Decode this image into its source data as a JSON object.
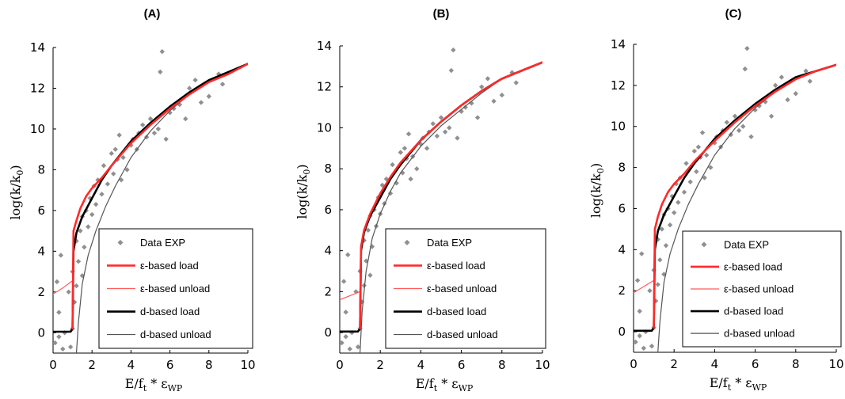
{
  "colors": {
    "data_points": "#909090",
    "eps_load": "#ff2a2a",
    "eps_unload": "#ff5a5a",
    "d_load": "#000000",
    "d_unload": "#555555",
    "axis": "#000000"
  },
  "axis_labels": {
    "x_main": "E/f",
    "x_sub1": "t",
    "x_mid": " * ε",
    "x_sub2": "WP",
    "y_main": "log(k/k",
    "y_sub": "0",
    "y_end": ")"
  },
  "legend": {
    "data": "Data EXP",
    "eps_load": "ε-based load",
    "eps_unload": "ε-based unload",
    "d_load": "d-based load",
    "d_unload": "d-based unload"
  },
  "chart_data": [
    {
      "panel": "(A)",
      "type": "scatter",
      "xlim": [
        0,
        10
      ],
      "ylim": [
        -1,
        14
      ],
      "x_ticks": [
        0,
        2,
        4,
        6,
        8,
        10
      ],
      "y_ticks": [
        0,
        2,
        4,
        6,
        8,
        10,
        12,
        14
      ],
      "legend_position": "bottom-right",
      "experimental_data": {
        "name": "Data EXP",
        "x": [
          0.1,
          0.2,
          0.3,
          0.3,
          0.4,
          0.5,
          0.6,
          0.8,
          0.9,
          1.0,
          1.0,
          1.1,
          1.2,
          1.2,
          1.3,
          1.4,
          1.5,
          1.5,
          1.6,
          1.7,
          1.8,
          1.9,
          2.0,
          2.1,
          2.2,
          2.3,
          2.5,
          2.6,
          2.8,
          3.0,
          3.1,
          3.2,
          3.3,
          3.4,
          3.5,
          3.6,
          3.8,
          4.0,
          4.1,
          4.3,
          4.4,
          4.6,
          4.8,
          5.0,
          5.2,
          5.4,
          5.5,
          5.6,
          5.8,
          6.0,
          6.2,
          6.5,
          6.8,
          7.0,
          7.3,
          7.6,
          8.0,
          8.5,
          8.7
        ],
        "y": [
          -0.5,
          2.5,
          -0.2,
          1.0,
          3.8,
          -0.8,
          0.0,
          2.0,
          -0.7,
          0.2,
          3.0,
          1.5,
          2.3,
          4.5,
          3.5,
          5.0,
          2.8,
          5.7,
          4.2,
          6.0,
          5.2,
          6.6,
          5.8,
          7.2,
          6.3,
          7.5,
          6.8,
          8.2,
          7.3,
          8.8,
          7.8,
          9.0,
          8.5,
          9.7,
          7.5,
          8.6,
          8.0,
          9.2,
          9.5,
          9.0,
          9.8,
          10.2,
          9.6,
          10.5,
          9.8,
          10.0,
          12.8,
          13.8,
          9.5,
          10.8,
          11.0,
          11.2,
          10.5,
          12.0,
          12.4,
          11.3,
          11.6,
          12.7,
          12.2
        ]
      },
      "series": [
        {
          "name": "ε-based load",
          "x": [
            1.0,
            1.05,
            1.2,
            1.4,
            1.7,
            2.0,
            2.5,
            3.0,
            4.0,
            5.0,
            6.0,
            7.0,
            8.0,
            9.0,
            10.0
          ],
          "y": [
            0.2,
            5.0,
            5.5,
            6.1,
            6.7,
            7.1,
            7.6,
            8.2,
            9.3,
            10.2,
            11.0,
            11.7,
            12.3,
            12.7,
            13.2
          ]
        },
        {
          "name": "ε-based unload",
          "x": [
            0.0,
            0.5,
            1.0
          ],
          "y": [
            1.9,
            2.2,
            2.55
          ]
        },
        {
          "name": "d-based load",
          "x": [
            0.0,
            0.9,
            1.0,
            1.05,
            1.2,
            1.5,
            2.0,
            2.5,
            3.0,
            4.0,
            5.0,
            6.0,
            7.0,
            8.0,
            9.0,
            10.0
          ],
          "y": [
            0.05,
            0.05,
            0.2,
            4.0,
            4.9,
            5.7,
            6.6,
            7.5,
            8.2,
            9.4,
            10.3,
            11.1,
            11.8,
            12.4,
            12.8,
            13.2
          ]
        },
        {
          "name": "d-based unload",
          "x": [
            1.2,
            1.3,
            1.5,
            1.8,
            2.2,
            2.7,
            3.2,
            4.0,
            5.0,
            6.0,
            7.0,
            8.0,
            9.0,
            10.0
          ],
          "y": [
            -1.0,
            0.5,
            2.4,
            3.8,
            5.0,
            6.2,
            7.2,
            8.6,
            9.9,
            10.9,
            11.7,
            12.4,
            12.8,
            13.2
          ]
        }
      ]
    },
    {
      "panel": "(B)",
      "type": "scatter",
      "xlim": [
        0,
        10
      ],
      "ylim": [
        -1,
        14
      ],
      "x_ticks": [
        0,
        2,
        4,
        6,
        8,
        10
      ],
      "y_ticks": [
        0,
        2,
        4,
        6,
        8,
        10,
        12,
        14
      ],
      "legend_position": "bottom-right",
      "experimental_data": {
        "name": "Data EXP",
        "x": [
          0.1,
          0.2,
          0.3,
          0.3,
          0.4,
          0.5,
          0.6,
          0.8,
          0.9,
          1.0,
          1.0,
          1.1,
          1.2,
          1.2,
          1.3,
          1.4,
          1.5,
          1.5,
          1.6,
          1.7,
          1.8,
          1.9,
          2.0,
          2.1,
          2.2,
          2.3,
          2.5,
          2.6,
          2.8,
          3.0,
          3.1,
          3.2,
          3.3,
          3.4,
          3.5,
          3.6,
          3.8,
          4.0,
          4.1,
          4.3,
          4.4,
          4.6,
          4.8,
          5.0,
          5.2,
          5.4,
          5.5,
          5.6,
          5.8,
          6.0,
          6.2,
          6.5,
          6.8,
          7.0,
          7.3,
          7.6,
          8.0,
          8.5,
          8.7
        ],
        "y": [
          -0.5,
          2.5,
          -0.2,
          1.0,
          3.8,
          -0.8,
          0.0,
          2.0,
          -0.7,
          0.2,
          3.0,
          1.5,
          2.3,
          4.5,
          3.5,
          5.0,
          2.8,
          5.7,
          4.2,
          6.0,
          5.2,
          6.6,
          5.8,
          7.2,
          6.3,
          7.5,
          6.8,
          8.2,
          7.3,
          8.8,
          7.8,
          9.0,
          8.5,
          9.7,
          7.5,
          8.6,
          8.0,
          9.2,
          9.5,
          9.0,
          9.8,
          10.2,
          9.6,
          10.5,
          9.8,
          10.0,
          12.8,
          13.8,
          9.5,
          10.8,
          11.0,
          11.2,
          10.5,
          12.0,
          12.4,
          11.3,
          11.6,
          12.7,
          12.2
        ]
      },
      "series": [
        {
          "name": "ε-based load",
          "x": [
            1.0,
            1.05,
            1.2,
            1.5,
            2.0,
            2.5,
            3.0,
            4.0,
            5.0,
            6.0,
            7.0,
            8.0,
            9.0,
            10.0
          ],
          "y": [
            0.2,
            4.2,
            5.0,
            5.8,
            6.8,
            7.6,
            8.3,
            9.4,
            10.3,
            11.1,
            11.8,
            12.4,
            12.8,
            13.2
          ]
        },
        {
          "name": "ε-based unload",
          "x": [
            0.0,
            0.5,
            1.0
          ],
          "y": [
            1.6,
            1.8,
            2.0
          ]
        },
        {
          "name": "d-based load",
          "x": [
            0.0,
            0.9,
            1.0,
            1.05,
            1.2,
            1.5,
            2.0,
            2.5,
            3.0,
            4.0,
            5.0,
            6.0,
            7.0,
            8.0,
            9.0,
            10.0
          ],
          "y": [
            0.05,
            0.05,
            0.2,
            4.0,
            4.9,
            5.7,
            6.6,
            7.5,
            8.2,
            9.4,
            10.3,
            11.1,
            11.8,
            12.4,
            12.8,
            13.2
          ]
        },
        {
          "name": "d-based unload",
          "x": [
            1.0,
            1.1,
            1.3,
            1.6,
            2.0,
            2.5,
            3.0,
            4.0,
            5.0,
            6.0,
            7.0,
            8.0,
            9.0,
            10.0
          ],
          "y": [
            -1.0,
            1.0,
            3.0,
            4.6,
            5.8,
            6.9,
            7.8,
            9.1,
            10.1,
            10.9,
            11.7,
            12.4,
            12.8,
            13.2
          ]
        }
      ]
    },
    {
      "panel": "(C)",
      "type": "scatter",
      "xlim": [
        0,
        10
      ],
      "ylim": [
        -1,
        14
      ],
      "x_ticks": [
        0,
        2,
        4,
        6,
        8,
        10
      ],
      "y_ticks": [
        0,
        2,
        4,
        6,
        8,
        10,
        12,
        14
      ],
      "legend_position": "bottom-right",
      "experimental_data": {
        "name": "Data EXP",
        "x": [
          0.1,
          0.2,
          0.3,
          0.3,
          0.4,
          0.5,
          0.6,
          0.8,
          0.9,
          1.0,
          1.0,
          1.1,
          1.2,
          1.2,
          1.3,
          1.4,
          1.5,
          1.5,
          1.6,
          1.7,
          1.8,
          1.9,
          2.0,
          2.1,
          2.2,
          2.3,
          2.5,
          2.6,
          2.8,
          3.0,
          3.1,
          3.2,
          3.3,
          3.4,
          3.5,
          3.6,
          3.8,
          4.0,
          4.1,
          4.3,
          4.4,
          4.6,
          4.8,
          5.0,
          5.2,
          5.4,
          5.5,
          5.6,
          5.8,
          6.0,
          6.2,
          6.5,
          6.8,
          7.0,
          7.3,
          7.6,
          8.0,
          8.5,
          8.7
        ],
        "y": [
          -0.5,
          2.5,
          -0.2,
          1.0,
          3.8,
          -0.8,
          0.0,
          2.0,
          -0.7,
          0.2,
          3.0,
          1.5,
          2.3,
          4.5,
          3.5,
          5.0,
          2.8,
          5.7,
          4.2,
          6.0,
          5.2,
          6.6,
          5.8,
          7.2,
          6.3,
          7.5,
          6.8,
          8.2,
          7.3,
          8.8,
          7.8,
          9.0,
          8.5,
          9.7,
          7.5,
          8.6,
          8.0,
          9.2,
          9.5,
          9.0,
          9.8,
          10.2,
          9.6,
          10.5,
          9.8,
          10.0,
          12.8,
          13.8,
          9.5,
          10.8,
          11.0,
          11.2,
          10.5,
          12.0,
          12.4,
          11.3,
          11.6,
          12.7,
          12.2
        ]
      },
      "series": [
        {
          "name": "ε-based load",
          "x": [
            1.0,
            1.05,
            1.2,
            1.4,
            1.7,
            2.0,
            2.5,
            3.0,
            4.0,
            5.0,
            6.0,
            7.0,
            8.0,
            9.0,
            10.0
          ],
          "y": [
            0.2,
            5.0,
            5.6,
            6.2,
            6.8,
            7.2,
            7.7,
            8.3,
            9.3,
            10.2,
            11.0,
            11.7,
            12.3,
            12.7,
            13.0
          ]
        },
        {
          "name": "ε-based unload",
          "x": [
            0.0,
            0.5,
            1.0
          ],
          "y": [
            1.9,
            2.2,
            2.5
          ]
        },
        {
          "name": "d-based load",
          "x": [
            0.0,
            0.9,
            1.0,
            1.05,
            1.2,
            1.5,
            2.0,
            2.5,
            3.0,
            4.0,
            5.0,
            6.0,
            7.0,
            8.0,
            9.0,
            10.0
          ],
          "y": [
            0.05,
            0.05,
            0.2,
            4.0,
            4.9,
            5.7,
            6.6,
            7.5,
            8.2,
            9.4,
            10.3,
            11.1,
            11.8,
            12.4,
            12.7,
            13.0
          ]
        },
        {
          "name": "d-based unload",
          "x": [
            1.2,
            1.3,
            1.5,
            1.8,
            2.2,
            2.7,
            3.2,
            4.0,
            5.0,
            6.0,
            7.0,
            8.0,
            9.0,
            10.0
          ],
          "y": [
            -1.0,
            0.5,
            2.4,
            3.8,
            5.0,
            6.2,
            7.2,
            8.6,
            9.9,
            10.9,
            11.7,
            12.4,
            12.7,
            13.0
          ]
        }
      ]
    }
  ]
}
